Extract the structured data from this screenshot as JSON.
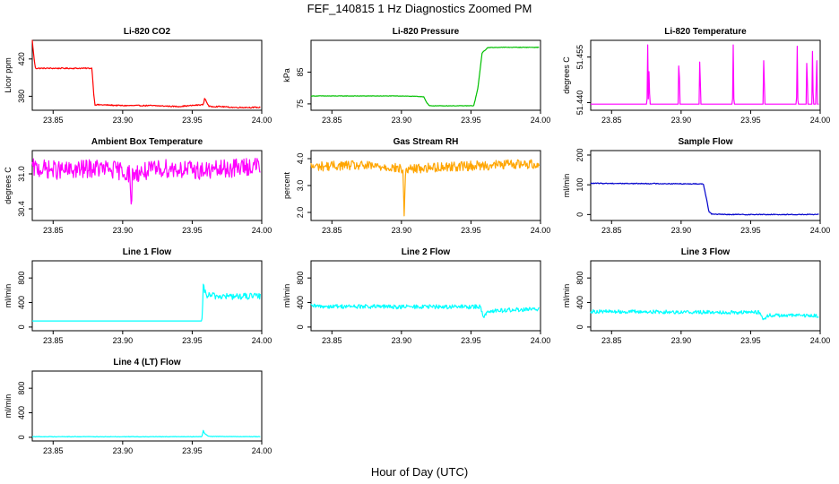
{
  "figure": {
    "title": "FEF_140815  1 Hz Diagnostics Zoomed PM",
    "xlabel": "Hour of Day (UTC)"
  },
  "chart_data": [
    {
      "type": "line",
      "title": "Li-820 CO2",
      "ylabel": "Licor ppm",
      "color": "#ff0000",
      "xlim": [
        23.835,
        24.0
      ],
      "ylim": [
        365,
        440
      ],
      "xticks": [
        23.85,
        23.9,
        23.95,
        24.0
      ],
      "xtick_labels": [
        "23.85",
        "23.90",
        "23.95",
        "24.00"
      ],
      "yticks": [
        380,
        420
      ],
      "ytick_labels": [
        "380",
        "420"
      ],
      "noise": 0.6,
      "x": [
        23.835,
        23.836,
        23.837,
        23.8375,
        23.85,
        23.865,
        23.878,
        23.879,
        23.88,
        23.9,
        23.92,
        23.94,
        23.958,
        23.959,
        23.96,
        23.962,
        23.97,
        23.98,
        23.999
      ],
      "y": [
        440,
        425,
        412,
        410,
        410,
        410,
        410,
        385,
        371,
        370,
        370,
        369,
        371,
        378,
        375,
        369,
        369,
        368,
        368
      ]
    },
    {
      "type": "line",
      "title": "Li-820 Pressure",
      "ylabel": "kPa",
      "color": "#00c000",
      "xlim": [
        23.835,
        24.0
      ],
      "ylim": [
        73,
        95
      ],
      "xticks": [
        23.85,
        23.9,
        23.95,
        24.0
      ],
      "xtick_labels": [
        "23.85",
        "23.90",
        "23.95",
        "24.00"
      ],
      "yticks": [
        75,
        85
      ],
      "ytick_labels": [
        "75",
        "85"
      ],
      "noise": 0.08,
      "x": [
        23.835,
        23.9,
        23.916,
        23.918,
        23.92,
        23.94,
        23.952,
        23.955,
        23.958,
        23.962,
        23.97,
        23.999
      ],
      "y": [
        77.5,
        77.5,
        77.3,
        75.5,
        74.4,
        74.4,
        74.4,
        80,
        91,
        92.7,
        92.8,
        92.8
      ]
    },
    {
      "type": "line",
      "title": "Li-820 Temperature",
      "ylabel": "degrees C",
      "color": "#ff00ff",
      "xlim": [
        23.835,
        24.0
      ],
      "ylim": [
        51.4375,
        51.4605
      ],
      "xticks": [
        23.85,
        23.9,
        23.95,
        24.0
      ],
      "xtick_labels": [
        "23.85",
        "23.90",
        "23.95",
        "24.00"
      ],
      "yticks": [
        51.44,
        51.455
      ],
      "ytick_labels": [
        "51.440",
        "51.455"
      ],
      "noise": 0,
      "x": [
        23.835,
        23.8755,
        23.876,
        23.8765,
        23.877,
        23.8775,
        23.878,
        23.898,
        23.8985,
        23.899,
        23.913,
        23.9135,
        23.914,
        23.937,
        23.9375,
        23.938,
        23.959,
        23.9595,
        23.96,
        23.983,
        23.9835,
        23.984,
        23.99,
        23.9905,
        23.991,
        23.994,
        23.9945,
        23.995,
        23.997,
        23.9975,
        23.998,
        23.999
      ],
      "y": [
        51.4395,
        51.4395,
        51.459,
        51.4395,
        51.4525,
        51.4395,
        51.4395,
        51.4395,
        51.459,
        51.4395,
        51.4395,
        51.459,
        51.4395,
        51.4395,
        51.459,
        51.4395,
        51.4395,
        51.459,
        51.4395,
        51.4395,
        51.459,
        51.4395,
        51.4395,
        51.459,
        51.4395,
        51.4395,
        51.459,
        51.4395,
        51.4395,
        51.459,
        51.4395,
        51.4395
      ]
    },
    {
      "type": "line",
      "title": "Ambient Box Temperature",
      "ylabel": "degrees C",
      "color": "#ff00ff",
      "xlim": [
        23.835,
        24.0
      ],
      "ylim": [
        30.2,
        31.4
      ],
      "xticks": [
        23.85,
        23.9,
        23.95,
        24.0
      ],
      "xtick_labels": [
        "23.85",
        "23.90",
        "23.95",
        "24.00"
      ],
      "yticks": [
        30.4,
        31.0
      ],
      "ytick_labels": [
        "30.4",
        "31.0"
      ],
      "noise": 0.16,
      "x": [
        23.835,
        23.86,
        23.88,
        23.9,
        23.905,
        23.906,
        23.907,
        23.93,
        23.96,
        23.98,
        23.999
      ],
      "y": [
        31.1,
        31.05,
        31.1,
        31.05,
        31.0,
        30.35,
        31.0,
        31.1,
        31.05,
        31.1,
        31.15
      ]
    },
    {
      "type": "line",
      "title": "Gas Stream RH",
      "ylabel": "percent",
      "color": "#ffa500",
      "xlim": [
        23.835,
        24.0
      ],
      "ylim": [
        1.7,
        4.3
      ],
      "xticks": [
        23.85,
        23.9,
        23.95,
        24.0
      ],
      "xtick_labels": [
        "23.85",
        "23.90",
        "23.95",
        "24.00"
      ],
      "yticks": [
        2.0,
        3.0,
        4.0
      ],
      "ytick_labels": [
        "2.0",
        "3.0",
        "4.0"
      ],
      "noise": 0.18,
      "x": [
        23.835,
        23.86,
        23.89,
        23.901,
        23.902,
        23.903,
        23.93,
        23.96,
        23.98,
        23.999
      ],
      "y": [
        3.7,
        3.75,
        3.7,
        3.6,
        1.85,
        3.6,
        3.7,
        3.75,
        3.8,
        3.8
      ]
    },
    {
      "type": "line",
      "title": "Sample Flow",
      "ylabel": "ml/min",
      "color": "#0000cc",
      "xlim": [
        23.835,
        24.0
      ],
      "ylim": [
        -20,
        215
      ],
      "xticks": [
        23.85,
        23.9,
        23.95,
        24.0
      ],
      "xtick_labels": [
        "23.85",
        "23.90",
        "23.95",
        "24.00"
      ],
      "yticks": [
        0,
        100,
        200
      ],
      "ytick_labels": [
        "0",
        "100",
        "200"
      ],
      "noise": 1.5,
      "x": [
        23.835,
        23.88,
        23.916,
        23.918,
        23.92,
        23.922,
        23.93,
        23.999
      ],
      "y": [
        105,
        104,
        103,
        60,
        10,
        2,
        0,
        0
      ]
    },
    {
      "type": "line",
      "title": "Line 1 Flow",
      "ylabel": "ml/min",
      "color": "#00ffff",
      "xlim": [
        23.835,
        24.0
      ],
      "ylim": [
        -60,
        1080
      ],
      "xticks": [
        23.85,
        23.9,
        23.95,
        24.0
      ],
      "xtick_labels": [
        "23.85",
        "23.90",
        "23.95",
        "24.00"
      ],
      "yticks": [
        0,
        400,
        800
      ],
      "ytick_labels": [
        "0",
        "400",
        "800"
      ],
      "noise": 55,
      "noise_from": 23.958,
      "x": [
        23.835,
        23.9,
        23.957,
        23.9575,
        23.958,
        23.96,
        23.97,
        23.999
      ],
      "y": [
        100,
        100,
        100,
        350,
        650,
        520,
        500,
        500
      ]
    },
    {
      "type": "line",
      "title": "Line 2 Flow",
      "ylabel": "ml/min",
      "color": "#00ffff",
      "xlim": [
        23.835,
        24.0
      ],
      "ylim": [
        -60,
        1080
      ],
      "xticks": [
        23.85,
        23.9,
        23.95,
        24.0
      ],
      "xtick_labels": [
        "23.85",
        "23.90",
        "23.95",
        "24.00"
      ],
      "yticks": [
        0,
        400,
        800
      ],
      "ytick_labels": [
        "0",
        "400",
        "800"
      ],
      "noise": 35,
      "x": [
        23.835,
        23.9,
        23.957,
        23.959,
        23.962,
        23.98,
        23.999
      ],
      "y": [
        340,
        330,
        330,
        170,
        260,
        280,
        290
      ]
    },
    {
      "type": "line",
      "title": "Line 3 Flow",
      "ylabel": "ml/min",
      "color": "#00ffff",
      "xlim": [
        23.835,
        24.0
      ],
      "ylim": [
        -60,
        1080
      ],
      "xticks": [
        23.85,
        23.9,
        23.95,
        24.0
      ],
      "xtick_labels": [
        "23.85",
        "23.90",
        "23.95",
        "24.00"
      ],
      "yticks": [
        0,
        400,
        800
      ],
      "ytick_labels": [
        "0",
        "400",
        "800"
      ],
      "noise": 30,
      "x": [
        23.835,
        23.9,
        23.957,
        23.959,
        23.962,
        23.98,
        23.999
      ],
      "y": [
        255,
        245,
        240,
        110,
        190,
        190,
        185
      ]
    },
    {
      "type": "line",
      "title": "Line 4 (LT) Flow",
      "ylabel": "ml/min",
      "color": "#00ffff",
      "xlim": [
        23.835,
        24.0
      ],
      "ylim": [
        -60,
        1080
      ],
      "xticks": [
        23.85,
        23.9,
        23.95,
        24.0
      ],
      "xtick_labels": [
        "23.85",
        "23.90",
        "23.95",
        "24.00"
      ],
      "yticks": [
        0,
        400,
        800
      ],
      "ytick_labels": [
        "0",
        "400",
        "800"
      ],
      "noise": 4,
      "x": [
        23.835,
        23.957,
        23.958,
        23.959,
        23.962,
        23.999
      ],
      "y": [
        10,
        10,
        110,
        60,
        15,
        10
      ]
    }
  ]
}
